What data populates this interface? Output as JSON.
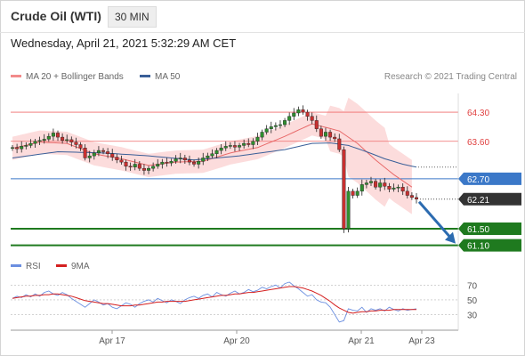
{
  "header": {
    "title": "Crude Oil (WTI)",
    "timeframe": "30 MIN"
  },
  "datetime": "Wednesday, April 21, 2021 5:32:29 AM CET",
  "legend": {
    "item1": "MA 20 + Bollinger Bands",
    "item2": "MA 50",
    "copyright": "Research © 2021 Trading Central",
    "rsi": "RSI",
    "rsi_ma": "9MA"
  },
  "colors": {
    "bollinger": "#f28b8b",
    "ma50": "#3a5f98",
    "resistance": "#ef6b6b",
    "pivot": "#3b78c8",
    "support": "#1f7a1f",
    "last_price": "#333333",
    "arrow": "#2c6bb0",
    "rsi": "#6b8fe0",
    "rsi_ma": "#d42020"
  },
  "chart_data": [
    {
      "type": "candlestick",
      "instrument": "Crude Oil (WTI)",
      "interval": "30 MIN",
      "ylim": [
        60.9,
        64.75
      ],
      "x_ticks": [
        "Apr 17",
        "Apr 20",
        "Apr 21",
        "Apr 23"
      ],
      "levels": [
        {
          "value": 64.3,
          "label": "64.30",
          "kind": "resistance"
        },
        {
          "value": 63.6,
          "label": "63.60",
          "kind": "resistance"
        },
        {
          "value": 62.7,
          "label": "62.70",
          "kind": "pivot"
        },
        {
          "value": 62.21,
          "label": "62.21",
          "kind": "last_price"
        },
        {
          "value": 61.5,
          "label": "61.50",
          "kind": "support"
        },
        {
          "value": 61.1,
          "label": "61.10",
          "kind": "support"
        }
      ],
      "candles_close": [
        63.45,
        63.42,
        63.48,
        63.5,
        63.55,
        63.6,
        63.62,
        63.65,
        63.72,
        63.8,
        63.7,
        63.62,
        63.64,
        63.58,
        63.52,
        63.44,
        63.2,
        63.25,
        63.32,
        63.38,
        63.35,
        63.3,
        63.22,
        63.15,
        63.1,
        63.0,
        62.98,
        63.05,
        62.95,
        62.9,
        62.95,
        63.0,
        63.05,
        63.1,
        63.08,
        63.12,
        63.18,
        63.2,
        63.15,
        63.1,
        63.05,
        63.12,
        63.2,
        63.25,
        63.3,
        63.38,
        63.44,
        63.48,
        63.5,
        63.46,
        63.5,
        63.55,
        63.52,
        63.6,
        63.7,
        63.82,
        63.9,
        63.95,
        63.98,
        64.0,
        64.1,
        64.2,
        64.28,
        64.36,
        64.3,
        64.2,
        64.1,
        63.9,
        63.72,
        63.82,
        63.7,
        63.66,
        63.4,
        61.5,
        62.4,
        62.3,
        62.4,
        62.56,
        62.6,
        62.64,
        62.5,
        62.6,
        62.52,
        62.45,
        62.48,
        62.5,
        62.4,
        62.3,
        62.25,
        62.21
      ],
      "ma20_x": [
        0,
        6,
        12,
        18,
        24,
        30,
        36,
        42,
        48,
        54,
        60,
        66,
        72,
        76,
        80,
        84,
        88
      ],
      "ma20": [
        63.43,
        63.58,
        63.55,
        63.3,
        63.18,
        63.02,
        63.1,
        63.12,
        63.32,
        63.45,
        63.72,
        64.02,
        63.85,
        63.55,
        63.15,
        62.8,
        62.5
      ],
      "ma50_x": [
        0,
        10,
        20,
        30,
        40,
        50,
        60,
        66,
        70,
        74,
        78,
        82,
        86,
        89
      ],
      "ma50": [
        63.2,
        63.35,
        63.32,
        63.25,
        63.15,
        63.25,
        63.4,
        63.55,
        63.56,
        63.5,
        63.35,
        63.18,
        63.05,
        62.98
      ],
      "projection": {
        "from": 62.21,
        "to": 61.1
      }
    },
    {
      "type": "line",
      "indicator": "RSI",
      "ylim": [
        15,
        80
      ],
      "y_ticks": [
        70,
        50,
        30
      ],
      "rsi": [
        52,
        55,
        53,
        57,
        54,
        58,
        55,
        60,
        62,
        58,
        56,
        60,
        57,
        52,
        48,
        44,
        40,
        45,
        50,
        47,
        43,
        45,
        40,
        38,
        42,
        46,
        44,
        40,
        45,
        48,
        50,
        47,
        52,
        49,
        46,
        50,
        48,
        45,
        50,
        53,
        55,
        52,
        56,
        58,
        54,
        60,
        57,
        55,
        59,
        62,
        58,
        60,
        64,
        61,
        63,
        67,
        65,
        68,
        70,
        66,
        72,
        74,
        69,
        65,
        60,
        55,
        57,
        50,
        47,
        46,
        40,
        30,
        20,
        22,
        38,
        36,
        35,
        40,
        33,
        38,
        36,
        38,
        35,
        40,
        37,
        35,
        38,
        36,
        37,
        38
      ],
      "ma9": [
        52,
        53,
        54,
        55,
        55,
        56,
        56,
        57,
        57,
        58,
        58,
        57,
        56,
        55,
        53,
        51,
        49,
        48,
        47,
        46,
        45,
        45,
        44,
        43,
        42,
        42,
        42,
        43,
        43,
        44,
        45,
        46,
        47,
        47,
        48,
        48,
        48,
        48,
        48,
        49,
        50,
        51,
        52,
        53,
        54,
        55,
        56,
        56,
        57,
        58,
        58,
        59,
        60,
        60,
        61,
        62,
        63,
        64,
        65,
        66,
        67,
        68,
        68,
        67,
        66,
        64,
        62,
        59,
        56,
        52,
        48,
        43,
        39,
        36,
        33,
        32,
        33,
        34,
        34,
        35,
        35,
        36,
        36,
        36,
        37,
        37,
        37,
        37,
        37,
        37
      ]
    }
  ]
}
